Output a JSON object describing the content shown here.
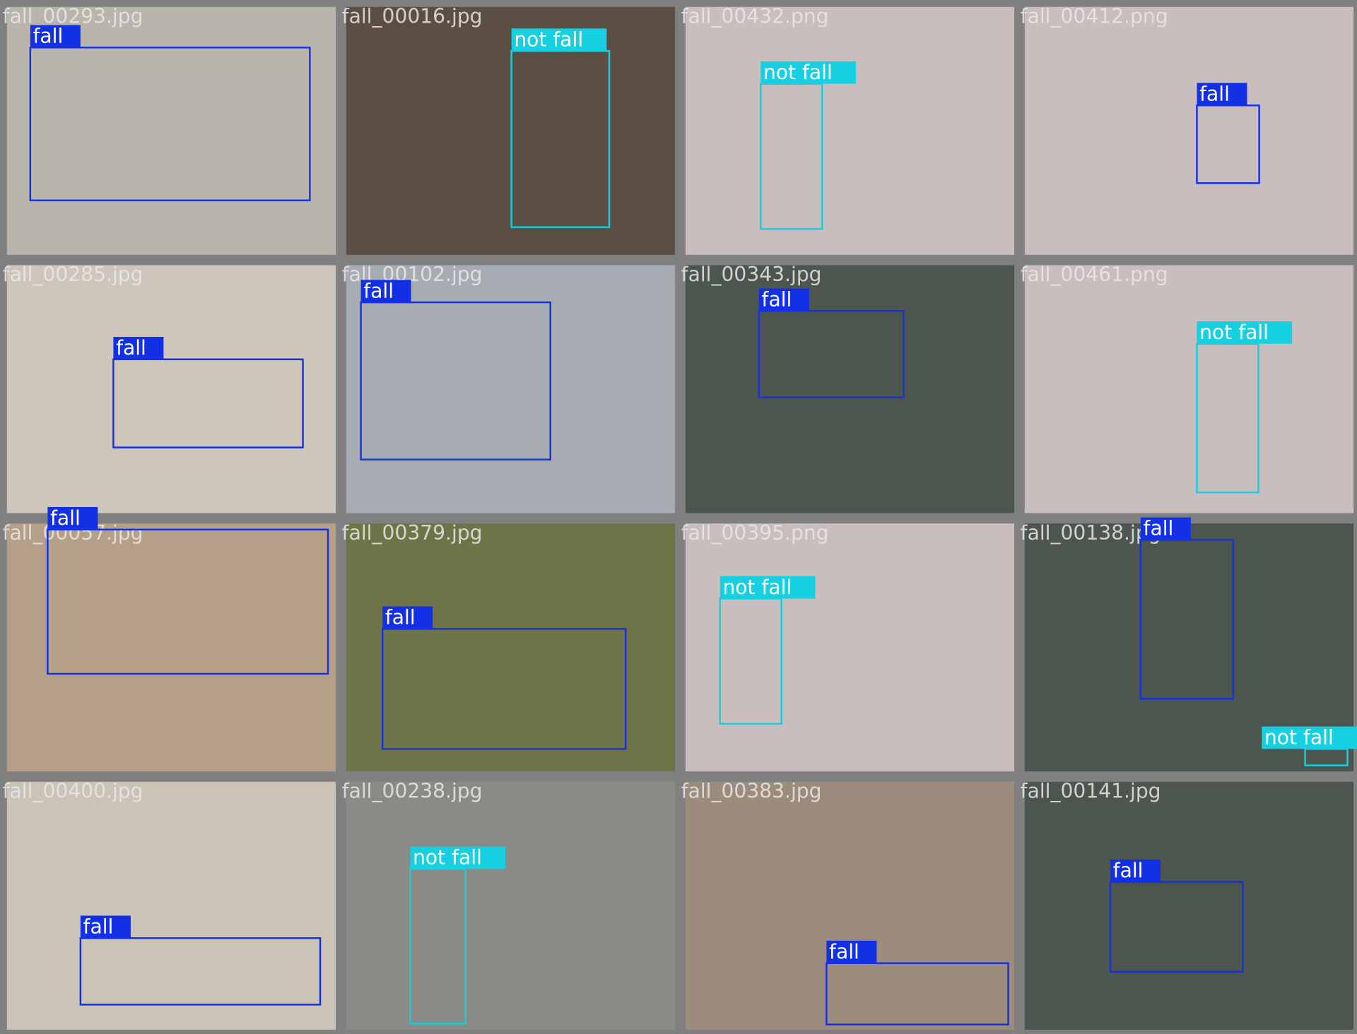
{
  "tiles": [
    {
      "filename": "fall_00293.jpg",
      "detections": [
        {
          "label": "fall",
          "color": "#1430e6"
        }
      ]
    },
    {
      "filename": "fall_00016.jpg",
      "detections": [
        {
          "label": "not fall",
          "color": "#16cfe0"
        }
      ]
    },
    {
      "filename": "fall_00432.png",
      "detections": [
        {
          "label": "not fall",
          "color": "#16cfe0"
        }
      ]
    },
    {
      "filename": "fall_00412.png",
      "detections": [
        {
          "label": "fall",
          "color": "#1430e6"
        }
      ]
    },
    {
      "filename": "fall_00285.jpg",
      "detections": [
        {
          "label": "fall",
          "color": "#1430e6"
        }
      ]
    },
    {
      "filename": "fall_00102.jpg",
      "detections": [
        {
          "label": "fall",
          "color": "#1430e6"
        }
      ]
    },
    {
      "filename": "fall_00343.jpg",
      "detections": [
        {
          "label": "fall",
          "color": "#1430e6"
        }
      ]
    },
    {
      "filename": "fall_00461.png",
      "detections": [
        {
          "label": "not fall",
          "color": "#16cfe0"
        }
      ]
    },
    {
      "filename": "fall_00057.jpg",
      "detections": [
        {
          "label": "fall",
          "color": "#1430e6"
        }
      ]
    },
    {
      "filename": "fall_00379.jpg",
      "detections": [
        {
          "label": "fall",
          "color": "#1430e6"
        }
      ]
    },
    {
      "filename": "fall_00395.png",
      "detections": [
        {
          "label": "not fall",
          "color": "#16cfe0"
        }
      ]
    },
    {
      "filename": "fall_00138.jpg",
      "detections": [
        {
          "label": "fall",
          "color": "#1430e6"
        },
        {
          "label": "not fall",
          "color": "#16cfe0"
        }
      ]
    },
    {
      "filename": "fall_00400.jpg",
      "detections": [
        {
          "label": "fall",
          "color": "#1430e6"
        }
      ]
    },
    {
      "filename": "fall_00238.jpg",
      "detections": [
        {
          "label": "not fall",
          "color": "#16cfe0"
        }
      ]
    },
    {
      "filename": "fall_00383.jpg",
      "detections": [
        {
          "label": "fall",
          "color": "#1430e6"
        }
      ]
    },
    {
      "filename": "fall_00141.jpg",
      "detections": [
        {
          "label": "fall",
          "color": "#1430e6"
        }
      ]
    }
  ]
}
